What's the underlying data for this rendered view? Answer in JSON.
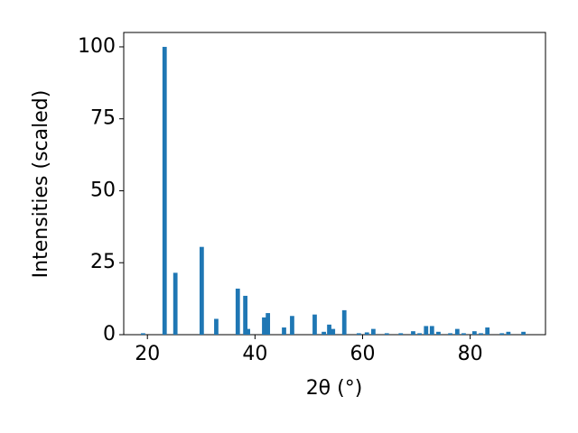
{
  "chart_data": {
    "type": "bar",
    "xlabel": "2θ (°)",
    "ylabel": "Intensities (scaled)",
    "x": [
      19.2,
      23.2,
      25.2,
      30.1,
      32.8,
      36.8,
      38.2,
      38.7,
      41.7,
      42.4,
      45.4,
      46.9,
      51.1,
      52.8,
      53.8,
      54.5,
      56.6,
      59.3,
      60.8,
      62.0,
      64.5,
      67.1,
      69.4,
      70.6,
      71.8,
      72.9,
      74.1,
      76.3,
      77.6,
      78.8,
      80.8,
      82.0,
      83.2,
      85.9,
      87.1,
      89.9
    ],
    "values": [
      0.5,
      100,
      21.5,
      30.5,
      5.5,
      16,
      13.5,
      2,
      6,
      7.5,
      2.5,
      6.5,
      7,
      1,
      3.5,
      2,
      8.5,
      0.5,
      0.8,
      2,
      0.5,
      0.5,
      1.2,
      0.5,
      3,
      3,
      1,
      0.5,
      2,
      0.5,
      1.2,
      0.5,
      2.5,
      0.5,
      1,
      1
    ],
    "color": "#1f77b4",
    "xlim": [
      15.6,
      94.0
    ],
    "ylim": [
      0,
      105
    ],
    "xticks": [
      20,
      40,
      60,
      80
    ],
    "yticks": [
      0,
      25,
      50,
      75,
      100
    ]
  }
}
